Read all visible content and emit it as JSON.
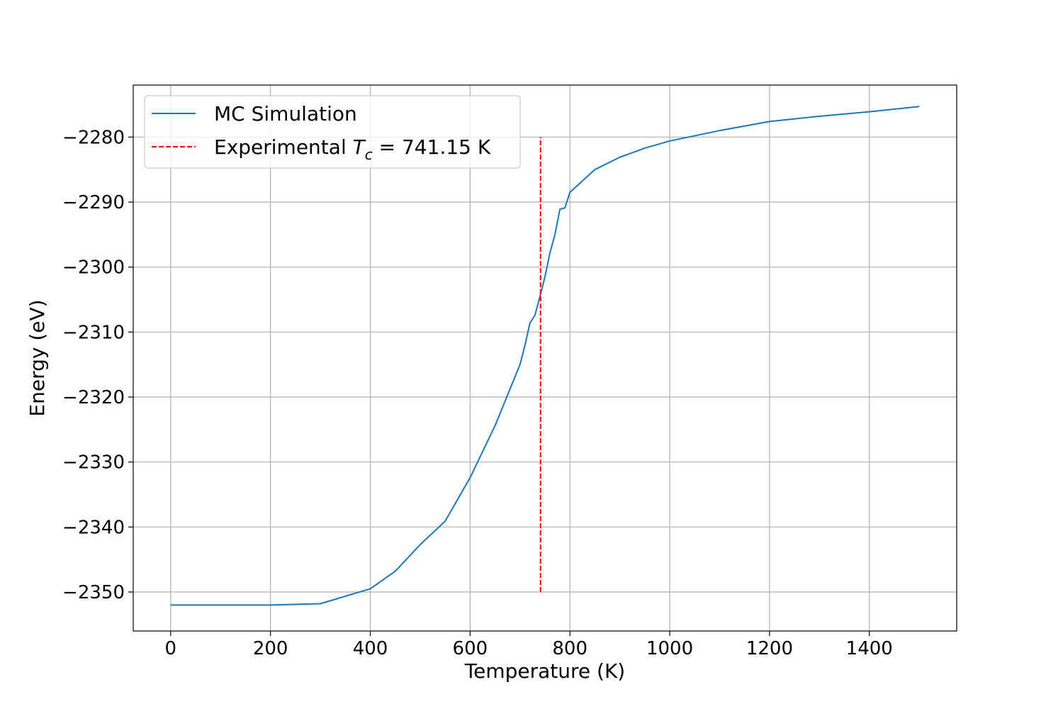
{
  "chart_data": {
    "type": "line",
    "title": "",
    "xlabel": "Temperature (K)",
    "ylabel": "Energy (eV)",
    "xlim": [
      -75,
      1575
    ],
    "ylim": [
      -2356,
      -2272
    ],
    "xticks": [
      0,
      200,
      400,
      600,
      800,
      1000,
      1200,
      1400
    ],
    "yticks": [
      -2350,
      -2340,
      -2330,
      -2320,
      -2310,
      -2300,
      -2290,
      -2280
    ],
    "xtick_labels": [
      "0",
      "200",
      "400",
      "600",
      "800",
      "1000",
      "1200",
      "1400"
    ],
    "ytick_labels": [
      "−2350",
      "−2340",
      "−2330",
      "−2320",
      "−2310",
      "−2300",
      "−2290",
      "−2280"
    ],
    "grid": true,
    "legend_position": "top-left",
    "series": [
      {
        "name": "MC Simulation",
        "color": "#1f77b4",
        "style": "solid",
        "x": [
          0,
          200,
          300,
          400,
          450,
          500,
          550,
          600,
          650,
          700,
          710,
          720,
          730,
          740,
          750,
          760,
          770,
          780,
          790,
          800,
          850,
          900,
          950,
          1000,
          1100,
          1200,
          1300,
          1400,
          1500
        ],
        "y": [
          -2352.0,
          -2352.0,
          -2351.8,
          -2349.5,
          -2346.8,
          -2342.7,
          -2339.1,
          -2332.4,
          -2324.4,
          -2315.0,
          -2312.0,
          -2308.6,
          -2307.4,
          -2304.5,
          -2301.5,
          -2297.8,
          -2295.0,
          -2291.1,
          -2290.9,
          -2288.5,
          -2285.0,
          -2283.1,
          -2281.7,
          -2280.6,
          -2279.0,
          -2277.6,
          -2276.8,
          -2276.1,
          -2275.3
        ]
      },
      {
        "name": "Experimental T_c = 741.15 K",
        "color": "#ff0000",
        "style": "dashed",
        "x": [
          741.15,
          741.15
        ],
        "y": [
          -2350,
          -2280
        ]
      }
    ],
    "legend": {
      "mc_label": "MC Simulation",
      "exp_prefix": "Experimental ",
      "exp_symbol": "T",
      "exp_subscript": "c",
      "exp_suffix": " = 741.15 K"
    }
  }
}
